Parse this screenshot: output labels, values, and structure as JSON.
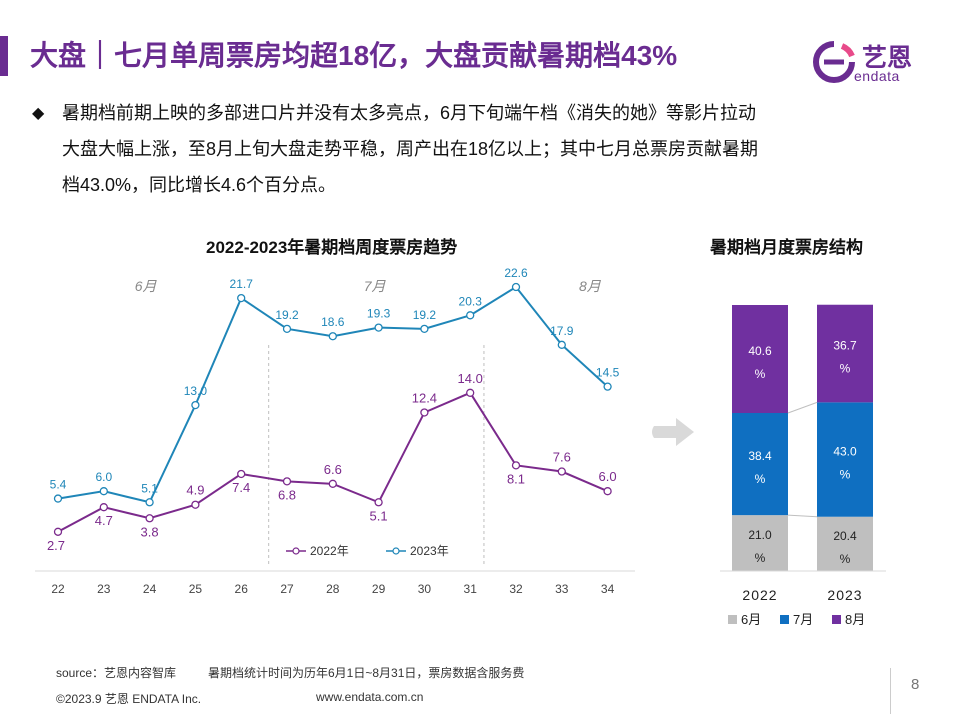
{
  "header": {
    "title": "大盘｜七月单周票房均超18亿，大盘贡献暑期档43%",
    "logo_cn": "艺恩",
    "logo_en": "endata"
  },
  "body": {
    "bullet_symbol": "◆",
    "lines": [
      "暑期档前期上映的多部进口片并没有太多亮点，6月下旬端午档《消失的她》等影片拉动",
      "大盘大幅上涨，至8月上旬大盘走势平稳，周产出在18亿以上；其中七月总票房贡献暑期",
      "档43.0%，同比增长4.6个百分点。"
    ]
  },
  "colors": {
    "accent": "#6a2c91",
    "series_2022": "#7b2a8c",
    "series_2023": "#1f86b8",
    "june": "#bfbfbf",
    "july": "#0f6fc1",
    "august": "#7030a0",
    "arrow": "#d9d9d9"
  },
  "chart_data": [
    {
      "id": "weekly-trend",
      "type": "line",
      "title": "2022-2023年暑期档周度票房趋势",
      "xlabel": "",
      "ylabel": "",
      "x": [
        "22",
        "23",
        "24",
        "25",
        "26",
        "27",
        "28",
        "29",
        "30",
        "31",
        "32",
        "33",
        "34"
      ],
      "ylim": [
        0,
        24
      ],
      "month_labels": [
        {
          "label": "6月",
          "at_index": 2
        },
        {
          "label": "7月",
          "at_index": 7
        },
        {
          "label": "8月",
          "at_index": 11.7
        }
      ],
      "dividers_after_index": [
        4.6,
        9.3
      ],
      "legend_position": "bottom-center",
      "series": [
        {
          "name": "2022年",
          "values": [
            2.7,
            4.7,
            3.8,
            4.9,
            7.4,
            6.8,
            6.6,
            5.1,
            12.4,
            14.0,
            8.1,
            7.6,
            6.0
          ]
        },
        {
          "name": "2023年",
          "values": [
            5.4,
            6.0,
            5.1,
            13.0,
            21.7,
            19.2,
            18.6,
            19.3,
            19.2,
            20.3,
            22.6,
            17.9,
            14.5
          ]
        }
      ]
    },
    {
      "id": "monthly-structure",
      "type": "bar",
      "stacked": true,
      "percent": true,
      "title": "暑期档月度票房结构",
      "categories": [
        "2022",
        "2023"
      ],
      "series": [
        {
          "name": "6月",
          "values": [
            21.0,
            20.4
          ]
        },
        {
          "name": "7月",
          "values": [
            38.4,
            43.0
          ]
        },
        {
          "name": "8月",
          "values": [
            40.6,
            36.7
          ]
        }
      ],
      "label_suffix": "%",
      "legend_position": "bottom"
    }
  ],
  "footer": {
    "source": "source：艺恩内容智库",
    "note": "暑期档统计时间为历年6月1日~8月31日，票房数据含服务费",
    "copyright": "©2023.9 艺恩 ENDATA Inc.",
    "url": "www.endata.com.cn",
    "page": "8"
  }
}
